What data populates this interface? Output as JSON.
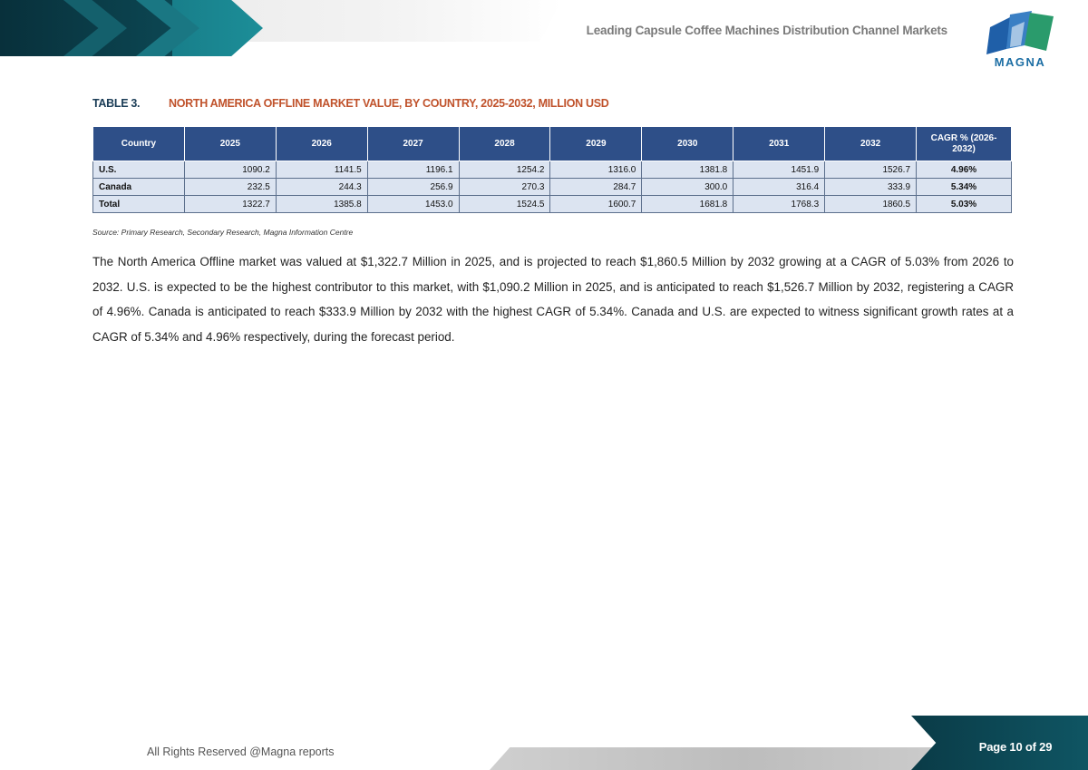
{
  "header": {
    "report_title": "Leading Capsule Coffee Machines Distribution Channel Markets",
    "logo_text": "MAGNA"
  },
  "table": {
    "number": "TABLE 3.",
    "title": "NORTH AMERICA OFFLINE MARKET VALUE, BY COUNTRY, 2025-2032, MILLION USD",
    "columns": [
      "Country",
      "2025",
      "2026",
      "2027",
      "2028",
      "2029",
      "2030",
      "2031",
      "2032",
      "CAGR % (2026-2032)"
    ],
    "rows": [
      [
        "U.S.",
        "1090.2",
        "1141.5",
        "1196.1",
        "1254.2",
        "1316.0",
        "1381.8",
        "1451.9",
        "1526.7",
        "4.96%"
      ],
      [
        "Canada",
        "232.5",
        "244.3",
        "256.9",
        "270.3",
        "284.7",
        "300.0",
        "316.4",
        "333.9",
        "5.34%"
      ],
      [
        "Total",
        "1322.7",
        "1385.8",
        "1453.0",
        "1524.5",
        "1600.7",
        "1681.8",
        "1768.3",
        "1860.5",
        "5.03%"
      ]
    ],
    "source": "Source: Primary Research, Secondary Research, Magna Information Centre"
  },
  "paragraph": "The North America Offline market was valued at $1,322.7 Million in 2025, and is projected to reach $1,860.5 Million by 2032 growing at a CAGR of 5.03% from 2026 to 2032. U.S. is expected to be the highest contributor to this market, with $1,090.2 Million in 2025, and is anticipated to reach $1,526.7 Million by 2032, registering a CAGR of 4.96%. Canada is anticipated to reach $333.9 Million by 2032 with the highest CAGR of 5.34%. Canada and U.S. are expected to witness significant growth rates at a CAGR of 5.34% and 4.96% respectively, during the forecast period.",
  "footer": {
    "rights": "All Rights Reserved @Magna reports",
    "page": "Page 10 of 29"
  },
  "colors": {
    "header_bg": "#2e4f88",
    "cell_bg": "#dce4f1",
    "title_accent": "#c0522b",
    "teal": "#0f5563"
  }
}
